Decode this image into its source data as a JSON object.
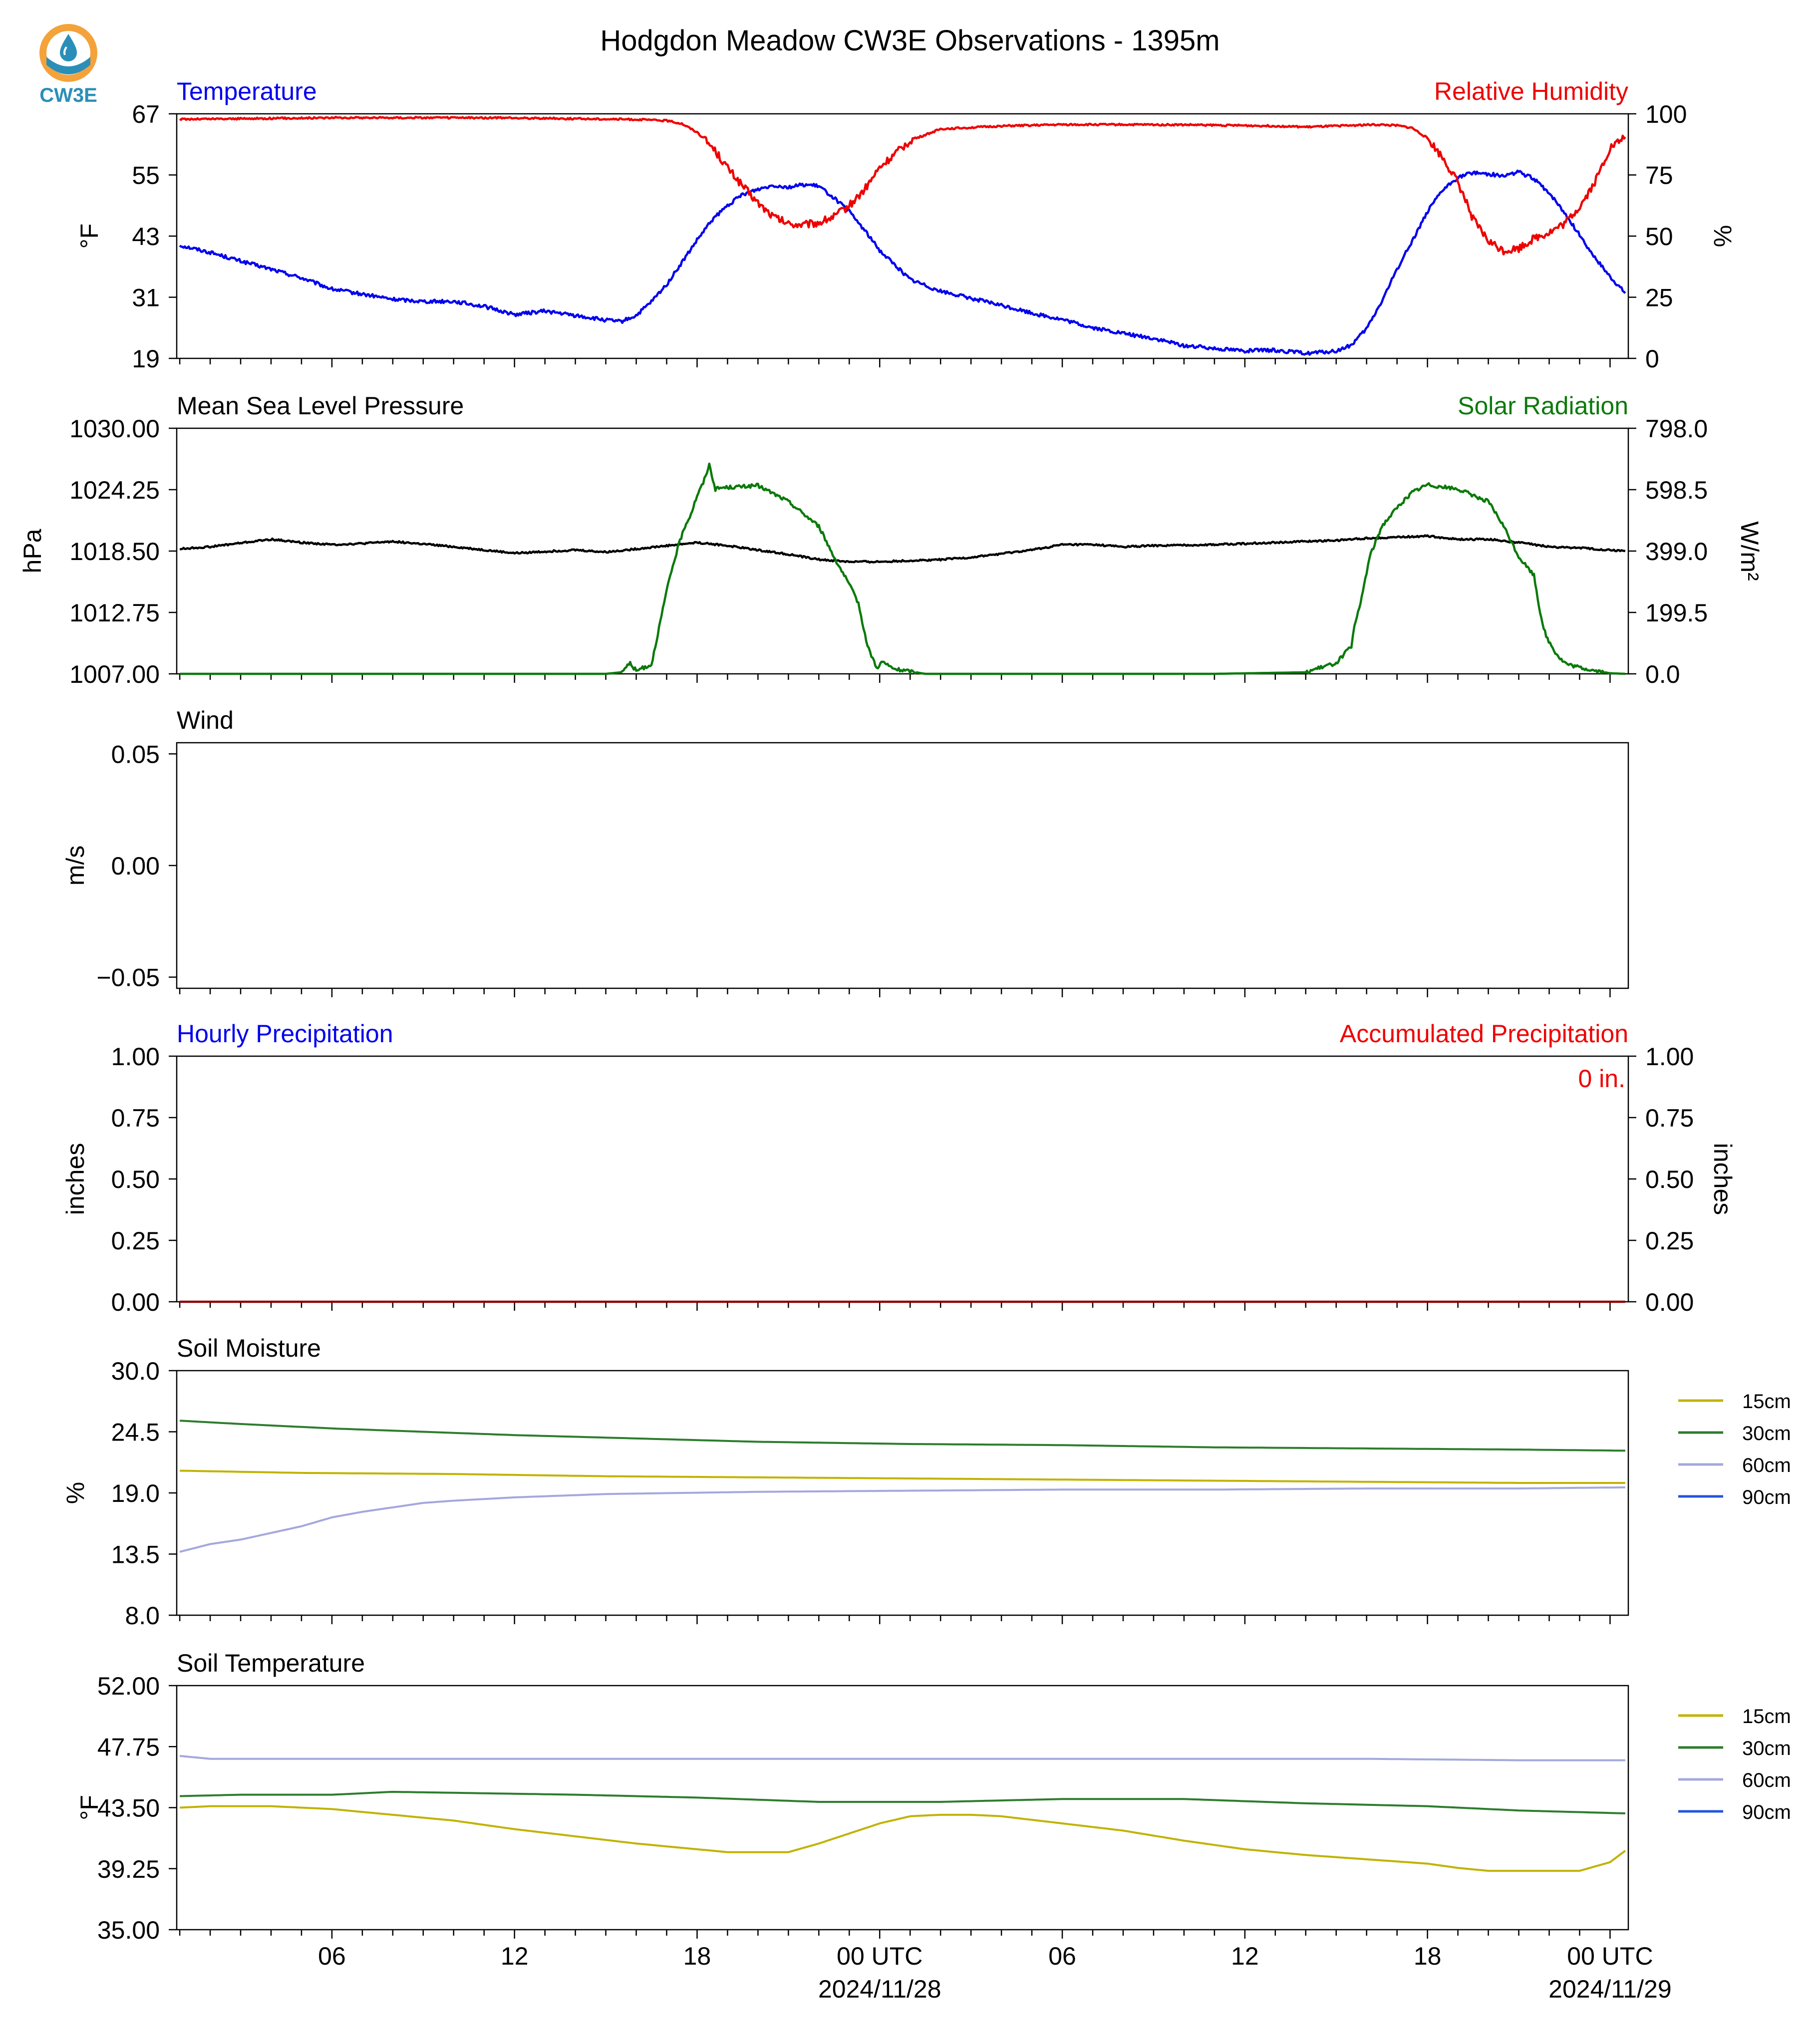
{
  "title": "Hodgdon Meadow CW3E Observations - 1395m",
  "logo": {
    "text": "CW3E",
    "color": "#2a8fb8",
    "accent": "#f4a23a",
    "icon": "cw3e-droplet-logo"
  },
  "x_axis": {
    "ticks": [
      "06",
      "12",
      "18",
      "00 UTC",
      "06",
      "12",
      "18",
      "00 UTC"
    ],
    "dates": [
      "2024/11/28",
      "2024/11/29"
    ]
  },
  "colors": {
    "blue": "#0000ee",
    "red": "#ee0000",
    "green": "#0a7a0a",
    "black": "#000000",
    "s15": "#c0b300",
    "s30": "#2d7d2d",
    "s60": "#a3a8dd",
    "s90": "#2255dd"
  },
  "chart_data": [
    {
      "type": "line",
      "title_left": "Temperature",
      "title_right": "Relative Humidity",
      "ylabel_left": "°F",
      "ylabel_right": "%",
      "ylim_left": [
        19,
        67
      ],
      "ylim_right": [
        0,
        100
      ],
      "yticks_left": [
        "67",
        "55",
        "43",
        "31",
        "19"
      ],
      "yticks_right": [
        "100",
        "75",
        "50",
        "25",
        "0"
      ],
      "series": [
        {
          "name": "Temperature",
          "axis": "left",
          "x_hours": [
            1,
            2,
            3,
            4,
            5,
            6,
            7,
            8,
            9,
            10,
            11,
            12,
            13,
            14,
            15,
            15.5,
            16,
            16.5,
            17,
            17.5,
            18,
            18.5,
            19,
            19.5,
            20,
            20.5,
            21,
            21.5,
            22,
            22.5,
            23,
            23.5,
            24,
            25,
            26,
            27,
            28,
            29,
            30,
            31,
            32,
            33,
            34,
            35,
            36,
            37,
            38,
            39,
            39.5,
            40,
            40.5,
            41,
            41.5,
            42,
            42.5,
            43,
            43.5,
            44,
            44.5,
            45,
            45.5,
            46,
            46.5,
            47,
            47.5,
            48,
            48.5
          ],
          "values": [
            41.2,
            39.8,
            38.1,
            36.5,
            34.8,
            32.6,
            31.6,
            30.6,
            30.2,
            30.2,
            29.2,
            27.6,
            28.3,
            27.4,
            26.5,
            26.2,
            27.4,
            30.1,
            33.5,
            37.8,
            42.2,
            46.2,
            49.0,
            51.2,
            52.2,
            53.0,
            52.6,
            53.1,
            52.8,
            50.5,
            47.8,
            44.2,
            40.2,
            34.5,
            32.2,
            30.8,
            29.4,
            27.9,
            26.6,
            25.0,
            23.9,
            22.9,
            21.5,
            21.0,
            20.5,
            20.6,
            20.0,
            20.4,
            21.6,
            24.8,
            30.2,
            36.5,
            42.1,
            47.8,
            52.0,
            54.5,
            55.5,
            55.2,
            54.8,
            55.6,
            54.2,
            51.5,
            47.6,
            43.2,
            38.8,
            35.0,
            31.8
          ]
        },
        {
          "name": "Relative Humidity",
          "axis": "right",
          "x_hours": [
            1,
            3,
            6,
            9,
            12,
            14,
            16,
            17,
            17.5,
            18,
            18.5,
            19,
            19.5,
            20,
            20.5,
            21,
            21.5,
            22,
            22.5,
            23,
            23.5,
            24,
            25,
            26,
            28,
            30,
            32,
            34,
            36,
            37,
            38,
            39,
            40,
            40.5,
            41,
            41.5,
            42,
            42.5,
            43,
            43.5,
            44,
            44.5,
            45,
            45.5,
            46,
            46.5,
            47,
            47.5,
            48,
            48.5
          ],
          "values": [
            97.8,
            98.0,
            98.4,
            98.4,
            98.3,
            98.0,
            97.7,
            97.2,
            96.0,
            92.5,
            86.5,
            78.0,
            70.5,
            63.5,
            58.0,
            55.0,
            54.6,
            55.5,
            58.0,
            62.5,
            69.0,
            78.0,
            89.0,
            93.8,
            95.0,
            95.6,
            95.6,
            95.5,
            95.2,
            95.0,
            94.6,
            95.0,
            95.5,
            95.5,
            95.2,
            94.2,
            90.0,
            82.0,
            72.0,
            57.0,
            48.0,
            44.0,
            45.0,
            49.0,
            51.5,
            55.0,
            62.0,
            72.0,
            86.0,
            90.5
          ]
        }
      ]
    },
    {
      "type": "line",
      "title_left": "Mean Sea Level Pressure",
      "title_right": "Solar Radiation",
      "ylabel_left": "hPa",
      "ylabel_right": "W/m²",
      "ylim_left": [
        1007.0,
        1030.0
      ],
      "ylim_right": [
        0.0,
        798.0
      ],
      "yticks_left": [
        "1030.00",
        "1024.25",
        "1018.50",
        "1012.75",
        "1007.00"
      ],
      "yticks_right": [
        "798.0",
        "598.5",
        "399.0",
        "199.5",
        "0.0"
      ],
      "series": [
        {
          "name": "Mean Sea Level Pressure",
          "axis": "left",
          "x_hours": [
            1,
            2,
            4,
            5,
            6,
            7,
            8,
            10,
            12,
            14,
            15,
            16,
            18,
            19,
            20,
            21,
            22,
            23,
            24,
            25,
            26,
            27,
            29,
            30,
            31,
            32,
            33,
            35,
            37,
            39,
            40,
            41,
            42,
            43,
            44,
            45,
            46,
            47,
            48,
            48.5
          ],
          "values": [
            1018.7,
            1018.9,
            1019.6,
            1019.3,
            1019.1,
            1019.2,
            1019.4,
            1018.9,
            1018.3,
            1018.6,
            1018.4,
            1018.7,
            1019.3,
            1019.0,
            1018.6,
            1018.2,
            1017.7,
            1017.5,
            1017.5,
            1017.6,
            1017.7,
            1017.9,
            1018.6,
            1019.1,
            1019.1,
            1018.9,
            1019.0,
            1019.1,
            1019.3,
            1019.5,
            1019.7,
            1019.8,
            1019.9,
            1019.6,
            1019.6,
            1019.3,
            1018.9,
            1018.8,
            1018.6,
            1018.5
          ]
        },
        {
          "name": "Solar Radiation",
          "axis": "right",
          "x_hours": [
            1,
            15,
            15.5,
            15.8,
            16.0,
            16.5,
            17.0,
            17.2,
            17.4,
            17.6,
            17.8,
            18.0,
            18.2,
            18.4,
            18.6,
            18.8,
            19.5,
            20,
            21,
            22,
            22.5,
            23,
            23.3,
            23.6,
            23.9,
            24.1,
            24.3,
            24.5,
            25,
            25.5,
            26,
            30,
            35,
            38,
            38.5,
            39,
            39.5,
            39.6,
            39.8,
            40.0,
            40.1,
            40.3,
            40.5,
            41,
            41.5,
            42,
            43,
            44,
            44.5,
            45,
            45.5,
            45.7,
            45.9,
            46.2,
            46.4,
            46.6,
            47,
            47.5,
            48,
            48.5
          ],
          "values": [
            0,
            0,
            5,
            35,
            10,
            30,
            270,
            350,
            420,
            480,
            520,
            580,
            620,
            680,
            600,
            605,
            608,
            612,
            560,
            480,
            380,
            290,
            230,
            90,
            20,
            40,
            25,
            15,
            8,
            0,
            0,
            0,
            0,
            5,
            20,
            35,
            90,
            150,
            230,
            330,
            380,
            430,
            480,
            540,
            590,
            615,
            600,
            560,
            480,
            380,
            320,
            200,
            120,
            70,
            45,
            30,
            20,
            10,
            2,
            0
          ]
        }
      ]
    },
    {
      "type": "line",
      "title_left": "Wind",
      "ylabel_left": "m/s",
      "ylim_left": [
        -0.055,
        0.055
      ],
      "yticks_left": [
        "0.05",
        "0.00",
        "−0.05"
      ],
      "series": []
    },
    {
      "type": "bar",
      "title_left": "Hourly Precipitation",
      "title_right": "Accumulated Precipitation",
      "annotation": "0 in.",
      "ylabel_left": "inches",
      "ylabel_right": "inches",
      "ylim_left": [
        0.0,
        1.0
      ],
      "ylim_right": [
        0.0,
        1.0
      ],
      "yticks_left": [
        "1.00",
        "0.75",
        "0.50",
        "0.25",
        "0.00"
      ],
      "yticks_right": [
        "1.00",
        "0.75",
        "0.50",
        "0.25",
        "0.00"
      ],
      "series": [
        {
          "name": "Accumulated Precipitation",
          "axis": "right",
          "x_hours": [
            1,
            48.5
          ],
          "values": [
            0,
            0
          ]
        }
      ]
    },
    {
      "type": "line",
      "title_left": "Soil Moisture",
      "ylabel_left": "%",
      "ylim_left": [
        8.0,
        30.0
      ],
      "yticks_left": [
        "30.0",
        "24.5",
        "19.0",
        "13.5",
        "8.0"
      ],
      "legend": [
        "15cm",
        "30cm",
        "60cm",
        "90cm"
      ],
      "series": [
        {
          "name": "15cm",
          "x_hours": [
            1,
            5,
            10,
            15,
            20,
            25,
            30,
            35,
            40,
            45,
            48.5
          ],
          "values": [
            21.0,
            20.8,
            20.7,
            20.5,
            20.4,
            20.3,
            20.2,
            20.1,
            20.0,
            19.9,
            19.9
          ]
        },
        {
          "name": "30cm",
          "x_hours": [
            1,
            3,
            6,
            9,
            12,
            16,
            20,
            25,
            30,
            35,
            40,
            45,
            48.5
          ],
          "values": [
            25.5,
            25.2,
            24.8,
            24.5,
            24.2,
            23.9,
            23.6,
            23.4,
            23.3,
            23.1,
            23.0,
            22.9,
            22.8
          ]
        },
        {
          "name": "60cm",
          "x_hours": [
            1,
            2,
            3,
            4,
            5,
            6,
            7,
            8,
            9,
            10,
            12,
            15,
            20,
            25,
            30,
            35,
            40,
            45,
            48.5
          ],
          "values": [
            13.7,
            14.4,
            14.8,
            15.4,
            16.0,
            16.8,
            17.3,
            17.7,
            18.1,
            18.3,
            18.6,
            18.9,
            19.1,
            19.2,
            19.3,
            19.3,
            19.4,
            19.4,
            19.5
          ]
        }
      ]
    },
    {
      "type": "line",
      "title_left": "Soil Temperature",
      "ylabel_left": "°F",
      "ylim_left": [
        35.0,
        52.0
      ],
      "yticks_left": [
        "52.00",
        "47.75",
        "43.50",
        "39.25",
        "35.00"
      ],
      "legend": [
        "15cm",
        "30cm",
        "60cm",
        "90cm"
      ],
      "series": [
        {
          "name": "15cm",
          "x_hours": [
            1,
            2,
            4,
            6,
            8,
            10,
            12,
            14,
            16,
            18,
            19,
            21,
            22,
            23,
            24,
            25,
            26,
            27,
            28,
            30,
            32,
            34,
            36,
            38,
            40,
            42,
            43,
            44,
            46,
            47,
            48,
            48.5
          ],
          "values": [
            43.5,
            43.6,
            43.6,
            43.4,
            43.0,
            42.6,
            42.0,
            41.5,
            41.0,
            40.6,
            40.4,
            40.4,
            41.0,
            41.7,
            42.4,
            42.9,
            43.0,
            43.0,
            42.9,
            42.4,
            41.9,
            41.2,
            40.6,
            40.2,
            39.9,
            39.6,
            39.3,
            39.1,
            39.1,
            39.1,
            39.7,
            40.5
          ]
        },
        {
          "name": "30cm",
          "x_hours": [
            1,
            3,
            6,
            8,
            11,
            14,
            18,
            22,
            26,
            30,
            34,
            38,
            42,
            45,
            48.5
          ],
          "values": [
            44.3,
            44.4,
            44.4,
            44.6,
            44.5,
            44.4,
            44.2,
            43.9,
            43.9,
            44.1,
            44.1,
            43.8,
            43.6,
            43.3,
            43.1
          ]
        },
        {
          "name": "60cm",
          "x_hours": [
            1,
            2,
            5,
            10,
            20,
            30,
            40,
            45,
            48.5
          ],
          "values": [
            47.1,
            46.9,
            46.9,
            46.9,
            46.9,
            46.9,
            46.9,
            46.8,
            46.8
          ]
        }
      ]
    }
  ]
}
